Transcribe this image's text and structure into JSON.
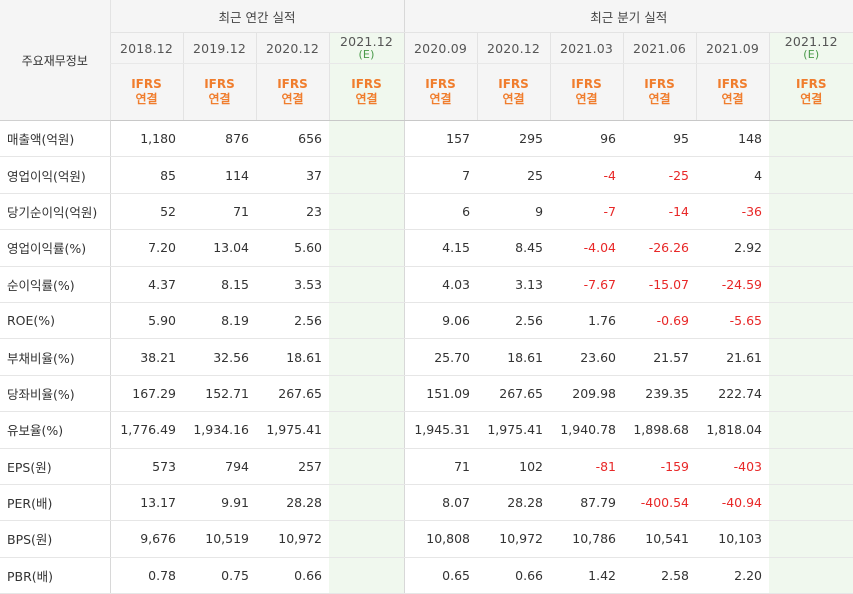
{
  "header": {
    "row_label": "주요재무정보",
    "annual_group": "최근 연간 실적",
    "quarter_group": "최근 분기 실적",
    "ifrs_top": "IFRS",
    "ifrs_bottom": "연결",
    "estimate_mark": "(E)",
    "annual_periods": [
      "2018.12",
      "2019.12",
      "2020.12",
      "2021.12"
    ],
    "quarter_periods": [
      "2020.09",
      "2020.12",
      "2021.03",
      "2021.06",
      "2021.09",
      "2021.12"
    ],
    "annual_estimate_index": 3,
    "quarter_estimate_index": 5
  },
  "colors": {
    "accent_ifrs": "#f07d2d",
    "negative": "#e82828",
    "estimate_bg": "#f0f8ee",
    "estimate_mark": "#4a9a4a"
  },
  "rows": [
    {
      "label": "매출액(억원)",
      "annual": [
        "1,180",
        "876",
        "656",
        ""
      ],
      "quarter": [
        "157",
        "295",
        "96",
        "95",
        "148",
        ""
      ]
    },
    {
      "label": "영업이익(억원)",
      "annual": [
        "85",
        "114",
        "37",
        ""
      ],
      "quarter": [
        "7",
        "25",
        "-4",
        "-25",
        "4",
        ""
      ]
    },
    {
      "label": "당기순이익(억원)",
      "annual": [
        "52",
        "71",
        "23",
        ""
      ],
      "quarter": [
        "6",
        "9",
        "-7",
        "-14",
        "-36",
        ""
      ]
    },
    {
      "label": "영업이익률(%)",
      "annual": [
        "7.20",
        "13.04",
        "5.60",
        ""
      ],
      "quarter": [
        "4.15",
        "8.45",
        "-4.04",
        "-26.26",
        "2.92",
        ""
      ]
    },
    {
      "label": "순이익률(%)",
      "annual": [
        "4.37",
        "8.15",
        "3.53",
        ""
      ],
      "quarter": [
        "4.03",
        "3.13",
        "-7.67",
        "-15.07",
        "-24.59",
        ""
      ]
    },
    {
      "label": "ROE(%)",
      "annual": [
        "5.90",
        "8.19",
        "2.56",
        ""
      ],
      "quarter": [
        "9.06",
        "2.56",
        "1.76",
        "-0.69",
        "-5.65",
        ""
      ]
    },
    {
      "label": "부채비율(%)",
      "annual": [
        "38.21",
        "32.56",
        "18.61",
        ""
      ],
      "quarter": [
        "25.70",
        "18.61",
        "23.60",
        "21.57",
        "21.61",
        ""
      ]
    },
    {
      "label": "당좌비율(%)",
      "annual": [
        "167.29",
        "152.71",
        "267.65",
        ""
      ],
      "quarter": [
        "151.09",
        "267.65",
        "209.98",
        "239.35",
        "222.74",
        ""
      ]
    },
    {
      "label": "유보율(%)",
      "annual": [
        "1,776.49",
        "1,934.16",
        "1,975.41",
        ""
      ],
      "quarter": [
        "1,945.31",
        "1,975.41",
        "1,940.78",
        "1,898.68",
        "1,818.04",
        ""
      ]
    },
    {
      "label": "EPS(원)",
      "annual": [
        "573",
        "794",
        "257",
        ""
      ],
      "quarter": [
        "71",
        "102",
        "-81",
        "-159",
        "-403",
        ""
      ]
    },
    {
      "label": "PER(배)",
      "annual": [
        "13.17",
        "9.91",
        "28.28",
        ""
      ],
      "quarter": [
        "8.07",
        "28.28",
        "87.79",
        "-400.54",
        "-40.94",
        ""
      ]
    },
    {
      "label": "BPS(원)",
      "annual": [
        "9,676",
        "10,519",
        "10,972",
        ""
      ],
      "quarter": [
        "10,808",
        "10,972",
        "10,786",
        "10,541",
        "10,103",
        ""
      ]
    },
    {
      "label": "PBR(배)",
      "annual": [
        "0.78",
        "0.75",
        "0.66",
        ""
      ],
      "quarter": [
        "0.65",
        "0.66",
        "1.42",
        "2.58",
        "2.20",
        ""
      ]
    }
  ]
}
